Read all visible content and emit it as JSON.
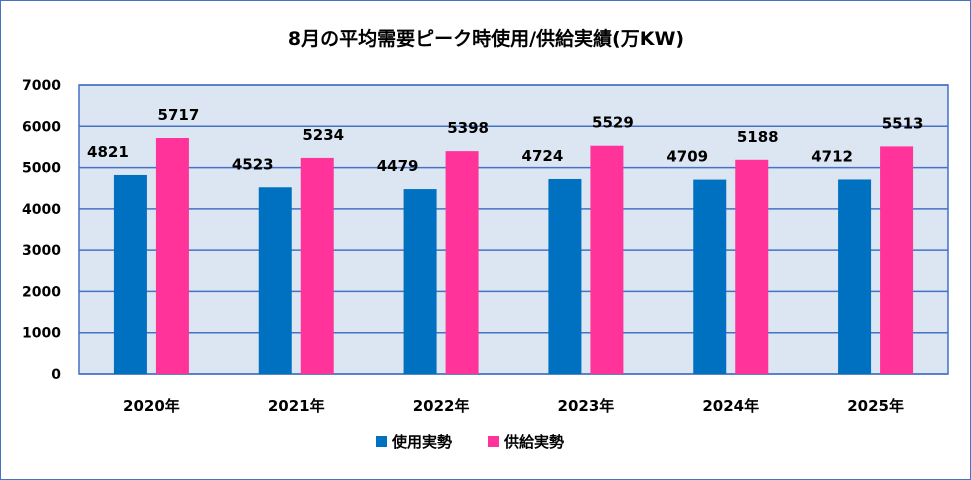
{
  "chart_data": {
    "type": "bar",
    "title": "8月の平均需要ピーク時使用/供給実績(万KW)",
    "xlabel": "",
    "ylabel": "",
    "categories": [
      "2020年",
      "2021年",
      "2022年",
      "2023年",
      "2024年",
      "2025年"
    ],
    "series": [
      {
        "name": "使用実勢",
        "color": "#0070c0",
        "values": [
          4821,
          4523,
          4479,
          4724,
          4709,
          4712
        ]
      },
      {
        "name": "供給実勢",
        "color": "#ff3399",
        "values": [
          5717,
          5234,
          5398,
          5529,
          5188,
          5513
        ]
      }
    ],
    "ylim": [
      0,
      7000
    ],
    "yticks": [
      0,
      1000,
      2000,
      3000,
      4000,
      5000,
      6000,
      7000
    ],
    "grid": true,
    "legend": "bottom",
    "plot_background": "#dce6f2",
    "gridline_color": "#4472c4"
  }
}
